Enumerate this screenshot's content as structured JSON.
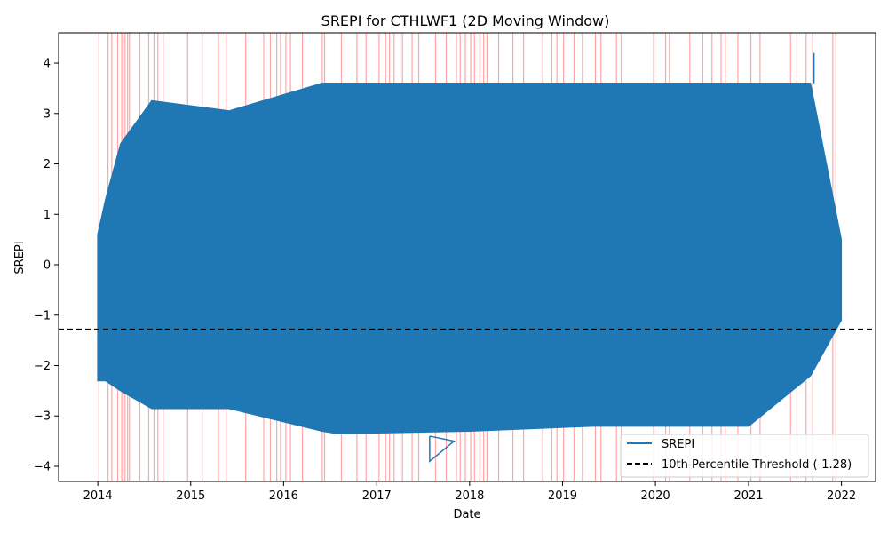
{
  "chart_data": {
    "type": "line",
    "title": "SREPI for CTHLWF1 (2D Moving Window)",
    "xlabel": "Date",
    "ylabel": "SREPI",
    "x_range": [
      "2013-07-31",
      "2022-05-15"
    ],
    "ylim": [
      -4.3,
      4.6
    ],
    "x_ticks": [
      "2014",
      "2015",
      "2016",
      "2017",
      "2018",
      "2019",
      "2020",
      "2021",
      "2022"
    ],
    "y_ticks": [
      -4,
      -3,
      -2,
      -1,
      0,
      1,
      2,
      3,
      4
    ],
    "y_tick_labels": [
      "−4",
      "−3",
      "−2",
      "−1",
      "0",
      "1",
      "2",
      "3",
      "4"
    ],
    "grid": false,
    "legend_position": "lower-right",
    "series": [
      {
        "name": "SREPI",
        "color": "#1f77b4",
        "envelope": {
          "x": [
            "2014-01-01",
            "2014-02-01",
            "2014-04-01",
            "2014-08-01",
            "2015-06-01",
            "2016-06-01",
            "2016-08-01",
            "2018-01-01",
            "2019-05-01",
            "2019-09-01",
            "2020-07-01",
            "2021-01-01",
            "2021-09-01",
            "2021-12-31"
          ],
          "upper": [
            0.6,
            1.3,
            2.4,
            3.25,
            3.05,
            3.6,
            3.6,
            3.6,
            3.6,
            3.6,
            3.6,
            3.6,
            3.6,
            0.5
          ],
          "lower": [
            -2.3,
            -2.3,
            -2.5,
            -2.85,
            -2.85,
            -3.3,
            -3.35,
            -3.3,
            -3.2,
            -3.2,
            -3.2,
            -3.2,
            -2.2,
            -1.1
          ]
        },
        "spikes": [
          {
            "x": [
              "2017-07-28",
              "2017-07-28",
              "2017-11-01",
              "2017-07-28"
            ],
            "y": [
              -3.4,
              -3.9,
              -3.5,
              -3.4
            ]
          },
          {
            "x": [
              "2021-09-15",
              "2021-09-15"
            ],
            "y": [
              3.6,
              4.2
            ]
          }
        ]
      }
    ],
    "threshold": {
      "name": "10th Percentile Threshold (-1.28)",
      "value": -1.28,
      "color": "#000000",
      "style": "dashed"
    },
    "drought_dates": {
      "color": "#ff0000",
      "opacity": 0.35,
      "dates": [
        "2014-01-05",
        "2014-02-10",
        "2014-02-25",
        "2014-03-20",
        "2014-04-05",
        "2014-04-10",
        "2014-04-18",
        "2014-04-28",
        "2014-05-05",
        "2014-06-15",
        "2014-07-20",
        "2014-08-10",
        "2014-08-25",
        "2014-09-15",
        "2014-12-20",
        "2015-02-15",
        "2015-04-20",
        "2015-05-20",
        "2015-08-05",
        "2015-10-15",
        "2015-11-10",
        "2015-12-05",
        "2015-12-20",
        "2016-01-10",
        "2016-01-28",
        "2016-03-15",
        "2016-06-01",
        "2016-06-10",
        "2016-08-15",
        "2016-10-15",
        "2016-11-20",
        "2017-01-10",
        "2017-02-05",
        "2017-02-20",
        "2017-03-10",
        "2017-04-12",
        "2017-05-20",
        "2017-06-15",
        "2017-08-20",
        "2017-10-01",
        "2017-11-10",
        "2017-11-25",
        "2017-12-15",
        "2018-01-05",
        "2018-01-20",
        "2018-02-10",
        "2018-02-25",
        "2018-03-10",
        "2018-04-25",
        "2018-06-20",
        "2018-08-01",
        "2018-10-15",
        "2018-11-20",
        "2018-12-10",
        "2019-01-05",
        "2019-02-15",
        "2019-03-20",
        "2019-05-10",
        "2019-06-01",
        "2019-08-01",
        "2019-08-20",
        "2019-12-25",
        "2020-02-10",
        "2020-02-25",
        "2020-05-15",
        "2020-07-05",
        "2020-08-10",
        "2020-09-15",
        "2020-10-01",
        "2020-11-20",
        "2021-01-10",
        "2021-02-15",
        "2021-06-15",
        "2021-07-10",
        "2021-08-15",
        "2021-09-10",
        "2021-11-28",
        "2021-12-10"
      ]
    }
  }
}
